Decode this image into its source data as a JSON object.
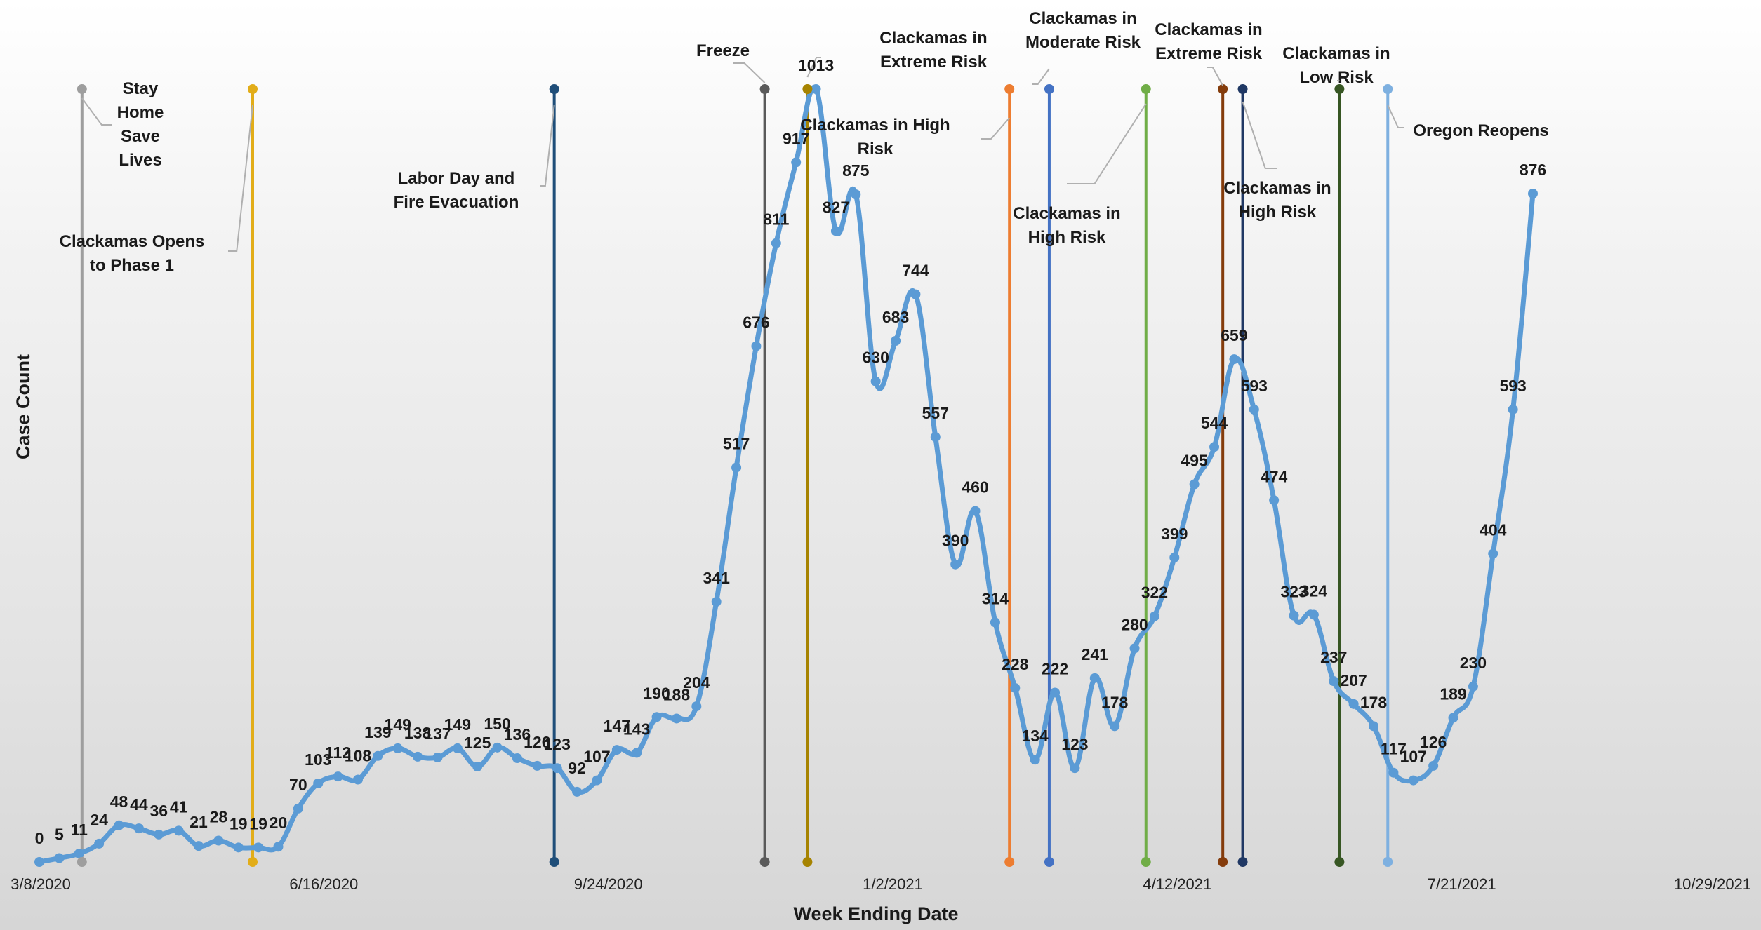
{
  "chart_data": {
    "type": "line",
    "title": "",
    "xlabel": "Week Ending Date",
    "ylabel": "Case Count",
    "xlim": [
      "2020-03-08",
      "2021-10-29"
    ],
    "ylim": [
      0,
      1013
    ],
    "grid": false,
    "legend": "none",
    "x_ticks": [
      "3/8/2020",
      "6/16/2020",
      "9/24/2020",
      "1/2/2021",
      "4/12/2021",
      "7/21/2021",
      "10/29/2021"
    ],
    "series": [
      {
        "color": "#5b9bd5",
        "points": [
          [
            "2020-03-08",
            0
          ],
          [
            "2020-03-15",
            5
          ],
          [
            "2020-03-22",
            11
          ],
          [
            "2020-03-29",
            24
          ],
          [
            "2020-04-05",
            48
          ],
          [
            "2020-04-12",
            44
          ],
          [
            "2020-04-19",
            36
          ],
          [
            "2020-04-26",
            41
          ],
          [
            "2020-05-03",
            21
          ],
          [
            "2020-05-10",
            28
          ],
          [
            "2020-05-17",
            19
          ],
          [
            "2020-05-24",
            19
          ],
          [
            "2020-05-31",
            20
          ],
          [
            "2020-06-07",
            70
          ],
          [
            "2020-06-14",
            103
          ],
          [
            "2020-06-21",
            112
          ],
          [
            "2020-06-28",
            108
          ],
          [
            "2020-07-05",
            139
          ],
          [
            "2020-07-12",
            149
          ],
          [
            "2020-07-19",
            138
          ],
          [
            "2020-07-26",
            137
          ],
          [
            "2020-08-02",
            149
          ],
          [
            "2020-08-09",
            125
          ],
          [
            "2020-08-16",
            150
          ],
          [
            "2020-08-23",
            136
          ],
          [
            "2020-08-30",
            126
          ],
          [
            "2020-09-06",
            123
          ],
          [
            "2020-09-13",
            92
          ],
          [
            "2020-09-20",
            107
          ],
          [
            "2020-09-27",
            147
          ],
          [
            "2020-10-04",
            143
          ],
          [
            "2020-10-11",
            190
          ],
          [
            "2020-10-18",
            188
          ],
          [
            "2020-10-25",
            204
          ],
          [
            "2020-11-01",
            341
          ],
          [
            "2020-11-08",
            517
          ],
          [
            "2020-11-15",
            676
          ],
          [
            "2020-11-22",
            811
          ],
          [
            "2020-11-29",
            917
          ],
          [
            "2020-12-06",
            1013
          ],
          [
            "2020-12-13",
            827
          ],
          [
            "2020-12-20",
            875
          ],
          [
            "2020-12-27",
            630
          ],
          [
            "2021-01-03",
            683
          ],
          [
            "2021-01-10",
            744
          ],
          [
            "2021-01-17",
            557
          ],
          [
            "2021-01-24",
            390
          ],
          [
            "2021-01-31",
            460
          ],
          [
            "2021-02-07",
            314
          ],
          [
            "2021-02-14",
            228
          ],
          [
            "2021-02-21",
            134
          ],
          [
            "2021-02-28",
            222
          ],
          [
            "2021-03-07",
            123
          ],
          [
            "2021-03-14",
            241
          ],
          [
            "2021-03-21",
            178
          ],
          [
            "2021-03-28",
            280
          ],
          [
            "2021-04-04",
            322
          ],
          [
            "2021-04-11",
            399
          ],
          [
            "2021-04-18",
            495
          ],
          [
            "2021-04-25",
            544
          ],
          [
            "2021-05-02",
            659
          ],
          [
            "2021-05-09",
            593
          ],
          [
            "2021-05-16",
            474
          ],
          [
            "2021-05-23",
            323
          ],
          [
            "2021-05-30",
            324
          ],
          [
            "2021-06-06",
            237
          ],
          [
            "2021-06-13",
            207
          ],
          [
            "2021-06-20",
            178
          ],
          [
            "2021-06-27",
            117
          ],
          [
            "2021-07-04",
            107
          ],
          [
            "2021-07-11",
            126
          ],
          [
            "2021-07-18",
            189
          ],
          [
            "2021-07-25",
            230
          ],
          [
            "2021-08-01",
            404
          ],
          [
            "2021-08-08",
            593
          ],
          [
            "2021-08-15",
            876
          ]
        ]
      }
    ],
    "events": [
      {
        "date": "2020-03-23",
        "color": "#9e9e9e",
        "text": [
          "Stay",
          "Home",
          "Save",
          "Lives"
        ]
      },
      {
        "date": "2020-05-22",
        "color": "#e2ad19",
        "text": [
          "Clackamas Opens",
          "to Phase 1"
        ]
      },
      {
        "date": "2020-09-05",
        "color": "#1f4e79",
        "text": [
          "Labor Day and",
          "Fire Evacuation"
        ]
      },
      {
        "date": "2020-11-18",
        "color": "#5a5a5a",
        "text": [
          "Freeze"
        ]
      },
      {
        "date": "2020-12-03",
        "color": "#a68300",
        "text": [
          "Clackamas in High",
          "Risk"
        ]
      },
      {
        "date": "2021-02-12",
        "color": "#ed7d31",
        "text": [
          "Clackamas in",
          "Extreme Risk"
        ]
      },
      {
        "date": "2021-02-26",
        "color": "#4472c4",
        "text": [
          "Clackamas in",
          "Moderate Risk"
        ]
      },
      {
        "date": "2021-04-01",
        "color": "#70ad47",
        "text": [
          "Clackamas in",
          "High Risk"
        ]
      },
      {
        "date": "2021-04-28",
        "color": "#843c0c",
        "text": [
          "Clackamas in",
          "Extreme Risk"
        ]
      },
      {
        "date": "2021-05-05",
        "color": "#203864",
        "text": [
          "Clackamas in",
          "High Risk"
        ]
      },
      {
        "date": "2021-06-08",
        "color": "#375623",
        "text": [
          "Clackamas in",
          "Low Risk"
        ]
      },
      {
        "date": "2021-06-25",
        "color": "#7eb0e0",
        "text": [
          "Oregon Reopens"
        ]
      }
    ]
  }
}
